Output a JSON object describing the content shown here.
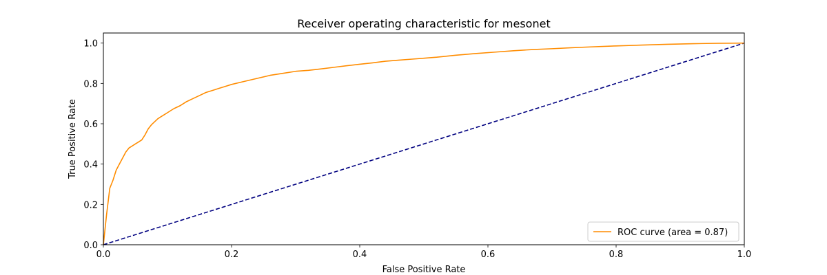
{
  "chart_data": {
    "type": "line",
    "title": "Receiver operating characteristic for mesonet",
    "xlabel": "False Positive Rate",
    "ylabel": "True Positive Rate",
    "xlim": [
      0.0,
      1.0
    ],
    "ylim": [
      0.0,
      1.05
    ],
    "xticks": [
      0.0,
      0.2,
      0.4,
      0.6,
      0.8,
      1.0
    ],
    "yticks": [
      0.0,
      0.2,
      0.4,
      0.6,
      0.8,
      1.0
    ],
    "xtick_labels": [
      "0.0",
      "0.2",
      "0.4",
      "0.6",
      "0.8",
      "1.0"
    ],
    "ytick_labels": [
      "0.0",
      "0.2",
      "0.4",
      "0.6",
      "0.8",
      "1.0"
    ],
    "grid": false,
    "legend_position": "lower-right",
    "series": [
      {
        "name": "ROC curve (area = 0.87)",
        "color": "#ff8c00",
        "style": "solid",
        "x": [
          0.0,
          0.005,
          0.01,
          0.015,
          0.02,
          0.025,
          0.03,
          0.035,
          0.04,
          0.045,
          0.05,
          0.055,
          0.06,
          0.065,
          0.07,
          0.075,
          0.08,
          0.085,
          0.09,
          0.095,
          0.1,
          0.11,
          0.12,
          0.13,
          0.14,
          0.15,
          0.16,
          0.17,
          0.18,
          0.19,
          0.2,
          0.22,
          0.24,
          0.26,
          0.28,
          0.3,
          0.32,
          0.34,
          0.36,
          0.38,
          0.4,
          0.42,
          0.44,
          0.46,
          0.48,
          0.5,
          0.52,
          0.55,
          0.58,
          0.61,
          0.64,
          0.67,
          0.7,
          0.73,
          0.76,
          0.8,
          0.84,
          0.88,
          0.92,
          0.96,
          1.0
        ],
        "y": [
          0.0,
          0.15,
          0.28,
          0.32,
          0.37,
          0.4,
          0.43,
          0.46,
          0.48,
          0.49,
          0.5,
          0.51,
          0.52,
          0.545,
          0.575,
          0.595,
          0.61,
          0.625,
          0.635,
          0.645,
          0.655,
          0.675,
          0.69,
          0.71,
          0.725,
          0.74,
          0.755,
          0.765,
          0.775,
          0.785,
          0.795,
          0.81,
          0.825,
          0.84,
          0.85,
          0.86,
          0.865,
          0.872,
          0.88,
          0.888,
          0.895,
          0.902,
          0.91,
          0.915,
          0.92,
          0.925,
          0.93,
          0.94,
          0.948,
          0.955,
          0.962,
          0.968,
          0.972,
          0.977,
          0.981,
          0.986,
          0.99,
          0.994,
          0.997,
          0.999,
          1.0
        ]
      },
      {
        "name": "",
        "color": "#000080",
        "style": "dashed",
        "x": [
          0.0,
          1.0
        ],
        "y": [
          0.0,
          1.0
        ]
      }
    ]
  }
}
